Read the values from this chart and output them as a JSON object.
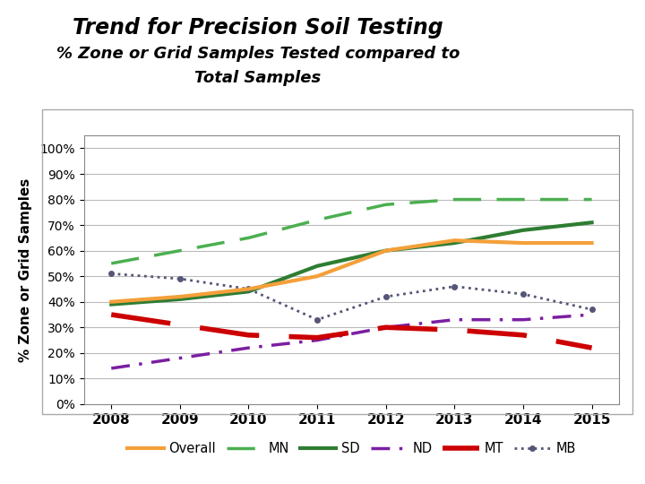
{
  "title_line1": "Trend for Precision Soil Testing",
  "title_line2": "% Zone or Grid Samples Tested compared to",
  "title_line3": "Total Samples",
  "ylabel": "% Zone or Grid Samples",
  "years": [
    2008,
    2009,
    2010,
    2011,
    2012,
    2013,
    2014,
    2015
  ],
  "series": {
    "Overall": [
      40,
      42,
      45,
      50,
      60,
      64,
      63,
      63
    ],
    "MN": [
      55,
      60,
      65,
      72,
      78,
      80,
      80,
      80
    ],
    "SD": [
      39,
      41,
      44,
      54,
      60,
      63,
      68,
      71
    ],
    "ND": [
      14,
      18,
      22,
      25,
      30,
      33,
      33,
      35
    ],
    "MT": [
      35,
      31,
      27,
      26,
      30,
      29,
      27,
      22
    ],
    "MB": [
      51,
      49,
      45,
      33,
      42,
      46,
      43,
      37
    ]
  },
  "styles": {
    "Overall": {
      "color": "#F4A03A",
      "linewidth": 3
    },
    "MN": {
      "color": "#4CAF50",
      "linewidth": 2.5
    },
    "SD": {
      "color": "#2E7D32",
      "linewidth": 3
    },
    "ND": {
      "color": "#7B1FA2",
      "linewidth": 2.5
    },
    "MT": {
      "color": "#CC0000",
      "linewidth": 4
    },
    "MB": {
      "color": "#555577",
      "linewidth": 2
    }
  },
  "yticks": [
    0,
    10,
    20,
    30,
    40,
    50,
    60,
    70,
    80,
    90,
    100
  ],
  "ylim": [
    0,
    105
  ],
  "xlim": [
    2007.6,
    2015.4
  ],
  "background_color": "#ffffff",
  "plot_bg": "#ffffff",
  "grid_color": "#bbbbbb",
  "box_bg": "#f5f5f5"
}
